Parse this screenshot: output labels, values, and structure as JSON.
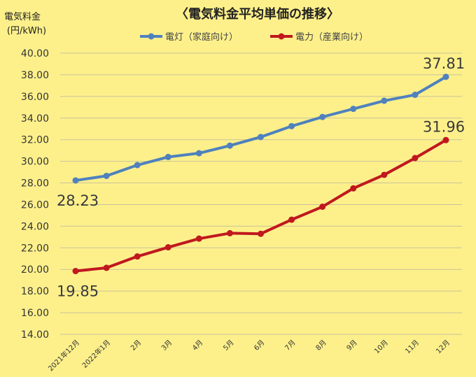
{
  "chart_data": {
    "type": "line",
    "title": "〈電気料金平均単価の推移〉",
    "ylabel_line1": "電気料金",
    "ylabel_line2": "(円/kWh)",
    "xlabel": "",
    "categories": [
      "2021年12月",
      "2022年1月",
      "2月",
      "3月",
      "4月",
      "5月",
      "6月",
      "7月",
      "8月",
      "9月",
      "10月",
      "11月",
      "12月"
    ],
    "ylim": [
      14,
      40
    ],
    "yticks": [
      "40.00",
      "38.00",
      "36.00",
      "34.00",
      "32.00",
      "30.00",
      "28.00",
      "26.00",
      "24.00",
      "22.00",
      "20.00",
      "18.00",
      "16.00",
      "14.00"
    ],
    "grid": true,
    "legend": "top",
    "series": [
      {
        "name": "電灯（家庭向け）",
        "color": "#4f81bd",
        "values": [
          28.23,
          28.65,
          29.65,
          30.4,
          30.75,
          31.45,
          32.25,
          33.25,
          34.1,
          34.85,
          35.6,
          36.15,
          37.81
        ],
        "labels": {
          "first": "28.23",
          "last": "37.81"
        }
      },
      {
        "name": "電力（産業向け）",
        "color": "#c0181e",
        "values": [
          19.85,
          20.15,
          21.2,
          22.05,
          22.85,
          23.35,
          23.3,
          24.6,
          25.8,
          27.5,
          28.75,
          30.3,
          31.96
        ],
        "labels": {
          "first": "19.85",
          "last": "31.96"
        }
      }
    ]
  }
}
